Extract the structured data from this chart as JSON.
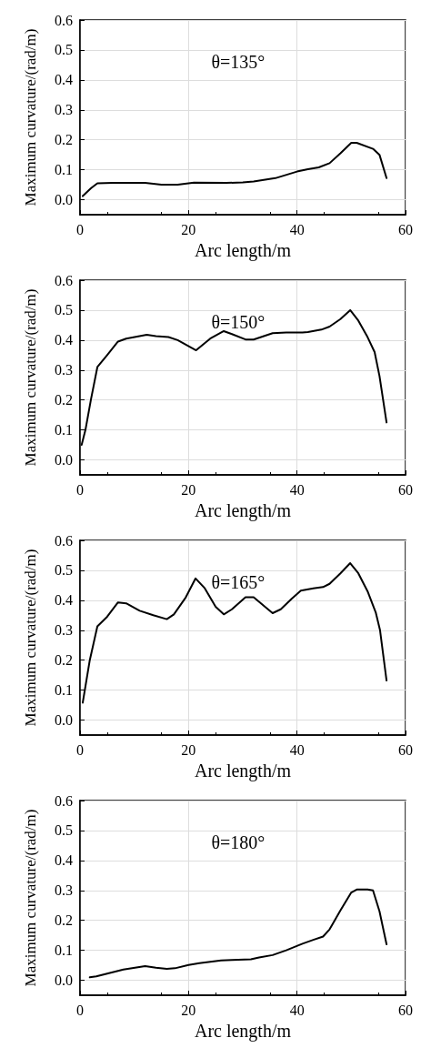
{
  "chart_data": [
    {
      "type": "line",
      "xlabel": "Arc length/m",
      "ylabel": "Maximum curvature/(rad/m)",
      "annotations": [
        "θ=135°"
      ],
      "xlim": [
        0,
        60
      ],
      "xticks": [
        0,
        20,
        40,
        60
      ],
      "ylim": [
        -0.05,
        0.6
      ],
      "yticks": [
        {
          "value": 0,
          "label": "0.0"
        },
        {
          "value": 0.1,
          "label": "0.1"
        },
        {
          "value": 0.2,
          "label": "0.2"
        },
        {
          "value": 0.3,
          "label": "0.3"
        },
        {
          "value": 0.4,
          "label": "0.4"
        },
        {
          "value": 0.5,
          "label": "0.5"
        },
        {
          "value": 0.6,
          "label": "0.6"
        }
      ],
      "grid": true,
      "marker": "none",
      "line_style": "solid",
      "series": [
        {
          "color": "#000000",
          "x": [
            0.5,
            2,
            3.2,
            6,
            12,
            15,
            18,
            21,
            27,
            30,
            32,
            36,
            40,
            42,
            44,
            46,
            48,
            50,
            51,
            54,
            55.2,
            56.5
          ],
          "values": [
            0.012,
            0.038,
            0.055,
            0.056,
            0.056,
            0.05,
            0.05,
            0.057,
            0.056,
            0.058,
            0.061,
            0.072,
            0.094,
            0.102,
            0.108,
            0.122,
            0.155,
            0.19,
            0.19,
            0.17,
            0.15,
            0.072
          ]
        }
      ]
    },
    {
      "type": "line",
      "xlabel": "Arc length/m",
      "ylabel": "Maximum curvature/(rad/m)",
      "annotations": [
        "θ=150°"
      ],
      "xlim": [
        0,
        60
      ],
      "xticks": [
        0,
        20,
        40,
        60
      ],
      "ylim": [
        -0.05,
        0.6
      ],
      "yticks": [
        {
          "value": 0,
          "label": "0.0"
        },
        {
          "value": 0.1,
          "label": "0.1"
        },
        {
          "value": 0.2,
          "label": "0.2"
        },
        {
          "value": 0.3,
          "label": "0.3"
        },
        {
          "value": 0.4,
          "label": "0.4"
        },
        {
          "value": 0.5,
          "label": "0.5"
        },
        {
          "value": 0.6,
          "label": "0.6"
        }
      ],
      "grid": true,
      "marker": "none",
      "line_style": "solid",
      "series": [
        {
          "color": "#000000",
          "x": [
            0.3,
            1,
            2,
            3.2,
            5,
            7,
            8.5,
            12.3,
            14,
            16.3,
            18,
            21.4,
            24,
            26.5,
            28,
            30.5,
            32,
            35.5,
            38,
            41,
            42,
            44.5,
            46,
            48,
            49.8,
            51.3,
            53,
            54.3,
            55.2,
            56.5
          ],
          "values": [
            0.05,
            0.1,
            0.2,
            0.31,
            0.35,
            0.395,
            0.405,
            0.418,
            0.413,
            0.41,
            0.4,
            0.366,
            0.405,
            0.43,
            0.42,
            0.402,
            0.402,
            0.423,
            0.425,
            0.425,
            0.427,
            0.435,
            0.445,
            0.47,
            0.5,
            0.465,
            0.41,
            0.36,
            0.28,
            0.125
          ]
        }
      ]
    },
    {
      "type": "line",
      "xlabel": "Arc length/m",
      "ylabel": "Maximum curvature/(rad/m)",
      "annotations": [
        "θ=165°"
      ],
      "xlim": [
        0,
        60
      ],
      "xticks": [
        0,
        20,
        40,
        60
      ],
      "ylim": [
        -0.05,
        0.6
      ],
      "yticks": [
        {
          "value": 0,
          "label": "0.0"
        },
        {
          "value": 0.1,
          "label": "0.1"
        },
        {
          "value": 0.2,
          "label": "0.2"
        },
        {
          "value": 0.3,
          "label": "0.3"
        },
        {
          "value": 0.4,
          "label": "0.4"
        },
        {
          "value": 0.5,
          "label": "0.5"
        },
        {
          "value": 0.6,
          "label": "0.6"
        }
      ],
      "grid": true,
      "marker": "none",
      "line_style": "solid",
      "series": [
        {
          "color": "#000000",
          "x": [
            0.5,
            1.8,
            3.2,
            5,
            7,
            8.5,
            11,
            13.5,
            16,
            17.3,
            19.5,
            21.3,
            23,
            25,
            26.5,
            28,
            30.5,
            32,
            35.5,
            37,
            39,
            40.7,
            43,
            44.8,
            46,
            48,
            49.8,
            51.3,
            53,
            54.5,
            55.3,
            56.5
          ],
          "values": [
            0.058,
            0.2,
            0.313,
            0.345,
            0.393,
            0.39,
            0.365,
            0.35,
            0.337,
            0.353,
            0.41,
            0.473,
            0.44,
            0.378,
            0.353,
            0.37,
            0.41,
            0.41,
            0.357,
            0.37,
            0.405,
            0.432,
            0.44,
            0.444,
            0.455,
            0.49,
            0.524,
            0.49,
            0.43,
            0.36,
            0.3,
            0.132
          ]
        }
      ]
    },
    {
      "type": "line",
      "xlabel": "Arc length/m",
      "ylabel": "Maximum curvature/(rad/m)",
      "annotations": [
        "θ=180°"
      ],
      "xlim": [
        0,
        60
      ],
      "xticks": [
        0,
        20,
        40,
        60
      ],
      "ylim": [
        -0.05,
        0.6
      ],
      "yticks": [
        {
          "value": 0,
          "label": "0.0"
        },
        {
          "value": 0.1,
          "label": "0.1"
        },
        {
          "value": 0.2,
          "label": "0.2"
        },
        {
          "value": 0.3,
          "label": "0.3"
        },
        {
          "value": 0.4,
          "label": "0.4"
        },
        {
          "value": 0.5,
          "label": "0.5"
        },
        {
          "value": 0.6,
          "label": "0.6"
        }
      ],
      "grid": true,
      "marker": "none",
      "line_style": "solid",
      "series": [
        {
          "color": "#000000",
          "x": [
            1.8,
            3,
            5,
            8,
            12,
            14,
            16,
            17.5,
            20,
            22,
            26,
            28,
            31.5,
            33,
            35.5,
            38,
            41,
            43,
            44.8,
            46,
            48,
            50,
            51,
            53,
            54,
            55.2,
            56.5
          ],
          "values": [
            0.01,
            0.013,
            0.022,
            0.036,
            0.047,
            0.042,
            0.038,
            0.04,
            0.051,
            0.057,
            0.066,
            0.068,
            0.07,
            0.076,
            0.084,
            0.1,
            0.122,
            0.135,
            0.146,
            0.17,
            0.233,
            0.293,
            0.303,
            0.303,
            0.3,
            0.23,
            0.12
          ]
        }
      ]
    }
  ]
}
